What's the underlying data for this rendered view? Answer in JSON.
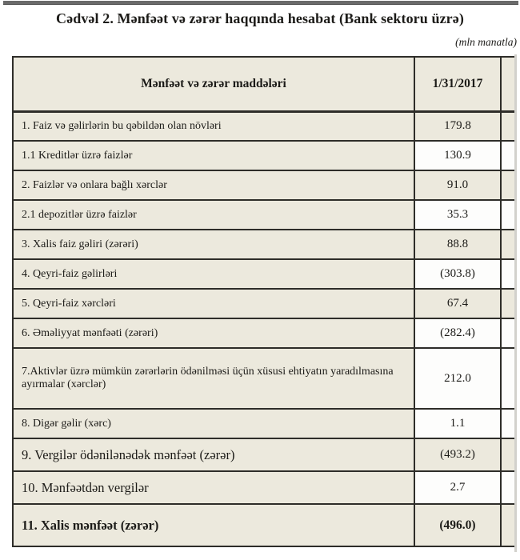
{
  "page": {
    "title": "Cədvəl 2. Mənfəət və zərər haqqında hesabat (Bank sektoru üzrə)",
    "unit_note": "(mln manatla)"
  },
  "table": {
    "header": {
      "items_label": "Mənfəət və zərər maddələri",
      "date_label": "1/31/2017"
    },
    "rows": [
      {
        "label": "1. Faiz və gəlirlərin bu qəbildən olan növləri",
        "value": "179.8",
        "value_bg": "beige",
        "size": "normal"
      },
      {
        "label": "1.1 Kreditlər üzrə faizlər",
        "value": "130.9",
        "value_bg": "white",
        "size": "normal"
      },
      {
        "label": "2. Faizlər və onlara bağlı xərclər",
        "value": "91.0",
        "value_bg": "beige",
        "size": "normal"
      },
      {
        "label": "2.1 depozitlər üzrə faizlər",
        "value": "35.3",
        "value_bg": "white",
        "size": "normal"
      },
      {
        "label": "3. Xalis faiz gəliri (zərəri)",
        "value": "88.8",
        "value_bg": "beige",
        "size": "normal"
      },
      {
        "label": "4. Qeyri-faiz gəlirləri",
        "value": "(303.8)",
        "value_bg": "white",
        "size": "normal"
      },
      {
        "label": "5. Qeyri-faiz xərcləri",
        "value": "67.4",
        "value_bg": "beige",
        "size": "normal"
      },
      {
        "label": "6. Əməliyyat mənfəəti (zərəri)",
        "value": "(282.4)",
        "value_bg": "white",
        "size": "normal"
      },
      {
        "label": "7.Aktivlər üzrə mümkün zərərlərin ödənilməsi üçün xüsusi ehtiyatın yaradılmasına ayırmalar (xərclər)",
        "value": "212.0",
        "value_bg": "white",
        "size": "tall"
      },
      {
        "label": "8. Digər gəlir (xərc)",
        "value": "1.1",
        "value_bg": "white",
        "size": "normal"
      },
      {
        "label": "9. Vergilər ödənilənədək mənfəət (zərər)",
        "value": "(493.2)",
        "value_bg": "beige",
        "size": "large"
      },
      {
        "label": "10. Mənfəətdən vergilər",
        "value": "2.7",
        "value_bg": "white",
        "size": "large"
      },
      {
        "label": "11. Xalis mənfəət (zərər)",
        "value": "(496.0)",
        "value_bg": "beige",
        "size": "final"
      }
    ]
  },
  "colors": {
    "cell_beige": "#ece9dd",
    "cell_white": "#fdfdfc",
    "border": "#2e2d29",
    "top_bar": "#6a6a6a",
    "text": "#1c1b18"
  }
}
